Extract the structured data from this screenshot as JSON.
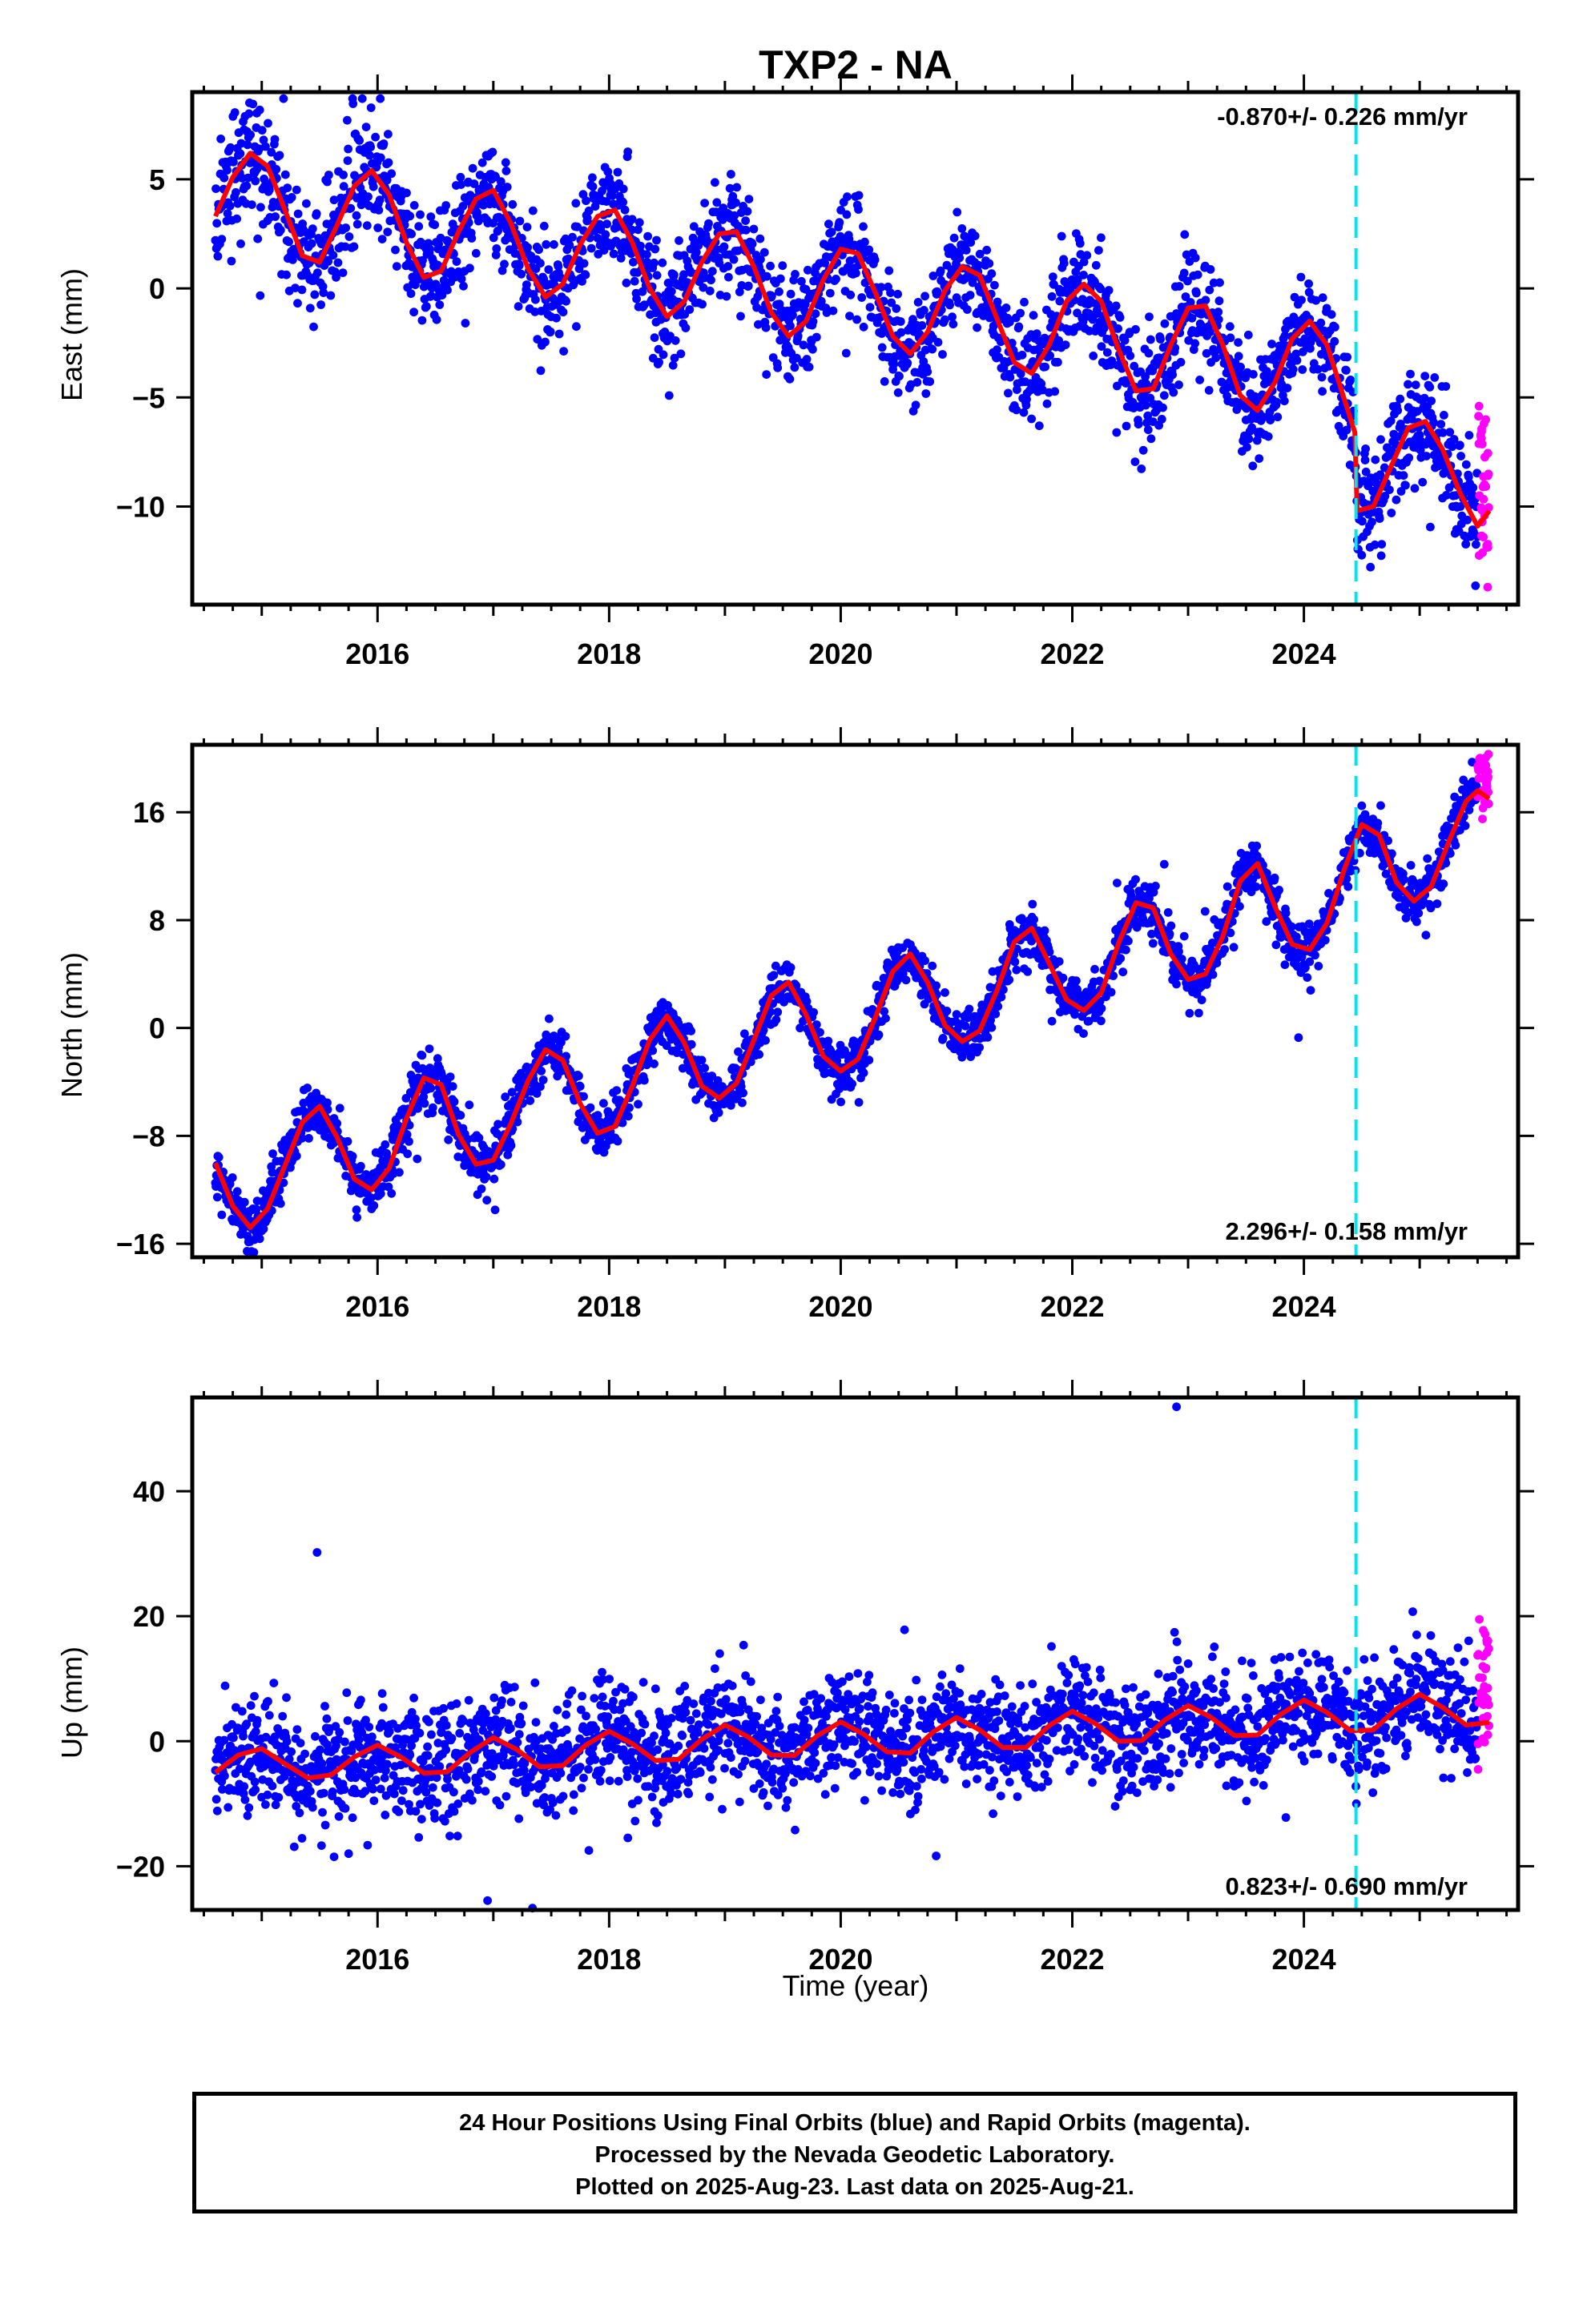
{
  "figure": {
    "title": "TXP2 - NA",
    "xlabel": "Time (year)",
    "caption": [
      "24 Hour Positions Using Final Orbits (blue) and Rapid Orbits (magenta).",
      "Processed by the Nevada Geodetic Laboratory.",
      "Plotted on 2025-Aug-23. Last data on 2025-Aug-21."
    ],
    "colors": {
      "final_orbits": "#0000ff",
      "rapid_orbits": "#ff00ff",
      "model_fit": "#ff0000",
      "equipment_change": "#00e5ee",
      "frame": "#000000"
    }
  },
  "chart_data": [
    {
      "type": "scatter",
      "component": "east",
      "ylabel": "East (mm)",
      "rate_label": "-0.870+/- 0.226 mm/yr",
      "rate_position": "top-right",
      "xlim": [
        2014.4,
        2025.85
      ],
      "ylim": [
        -14.5,
        9
      ],
      "xticks": [
        2016,
        2018,
        2020,
        2022,
        2024
      ],
      "xtick_labels": [
        "2016",
        "2018",
        "2020",
        "2022",
        "2024"
      ],
      "yticks": [
        -10,
        -5,
        0,
        5
      ],
      "ytick_labels": [
        "−10",
        "−5",
        "0",
        "5"
      ],
      "grid": false,
      "equipment_change_epoch": 2024.45,
      "model_fit": {
        "x": [
          2014.6,
          2014.75,
          2014.9,
          2015.05,
          2015.2,
          2015.35,
          2015.5,
          2015.65,
          2015.8,
          2015.95,
          2016.1,
          2016.25,
          2016.4,
          2016.55,
          2016.7,
          2016.85,
          2017.0,
          2017.15,
          2017.3,
          2017.45,
          2017.6,
          2017.75,
          2017.9,
          2018.05,
          2018.2,
          2018.35,
          2018.5,
          2018.65,
          2018.8,
          2018.95,
          2019.1,
          2019.25,
          2019.4,
          2019.55,
          2019.7,
          2019.85,
          2020.0,
          2020.15,
          2020.3,
          2020.45,
          2020.6,
          2020.75,
          2020.9,
          2021.05,
          2021.2,
          2021.35,
          2021.5,
          2021.65,
          2021.8,
          2021.95,
          2022.1,
          2022.25,
          2022.4,
          2022.55,
          2022.7,
          2022.85,
          2023.0,
          2023.15,
          2023.3,
          2023.45,
          2023.6,
          2023.75,
          2023.9,
          2024.05,
          2024.2,
          2024.35,
          2024.44,
          2024.46,
          2024.6,
          2024.75,
          2024.9,
          2025.05,
          2025.2,
          2025.35,
          2025.5,
          2025.6
        ],
        "y": [
          3.3,
          5.1,
          6.2,
          5.6,
          3.6,
          1.5,
          1.2,
          2.9,
          4.7,
          5.4,
          4.3,
          2.1,
          0.5,
          0.8,
          2.6,
          4.1,
          4.5,
          3.0,
          0.9,
          -0.4,
          0.2,
          2.0,
          3.3,
          3.6,
          2.1,
          0.0,
          -1.3,
          -0.6,
          1.2,
          2.5,
          2.6,
          1.0,
          -1.1,
          -2.2,
          -1.5,
          0.4,
          1.8,
          1.6,
          -0.2,
          -2.2,
          -3.0,
          -2.0,
          -0.1,
          1.0,
          0.6,
          -1.4,
          -3.4,
          -3.9,
          -2.6,
          -0.6,
          0.2,
          -0.6,
          -2.8,
          -4.7,
          -4.6,
          -2.6,
          -0.9,
          -0.8,
          -2.6,
          -4.9,
          -5.6,
          -4.3,
          -2.3,
          -1.5,
          -2.6,
          -5.1,
          -6.6,
          -10.2,
          -10.0,
          -8.2,
          -6.4,
          -6.1,
          -7.4,
          -9.4,
          -10.9,
          -10.2
        ]
      },
      "final_series_end": 2025.5,
      "rapid_series": {
        "x_start": 2025.5,
        "x_end": 2025.6,
        "y_min": -13.7,
        "y_max": -5.4
      }
    },
    {
      "type": "scatter",
      "component": "north",
      "ylabel": "North (mm)",
      "rate_label": "2.296+/- 0.158 mm/yr",
      "rate_position": "bottom-right",
      "xlim": [
        2014.4,
        2025.85
      ],
      "ylim": [
        -17,
        21
      ],
      "xticks": [
        2016,
        2018,
        2020,
        2022,
        2024
      ],
      "xtick_labels": [
        "2016",
        "2018",
        "2020",
        "2022",
        "2024"
      ],
      "yticks": [
        -16,
        -8,
        0,
        8,
        16
      ],
      "ytick_labels": [
        "−16",
        "−8",
        "0",
        "8",
        "16"
      ],
      "grid": false,
      "equipment_change_epoch": 2024.45,
      "model_fit": {
        "x": [
          2014.6,
          2014.75,
          2014.9,
          2015.05,
          2015.2,
          2015.35,
          2015.5,
          2015.65,
          2015.8,
          2015.95,
          2016.1,
          2016.25,
          2016.4,
          2016.55,
          2016.7,
          2016.85,
          2017.0,
          2017.15,
          2017.3,
          2017.45,
          2017.6,
          2017.75,
          2017.9,
          2018.05,
          2018.2,
          2018.35,
          2018.5,
          2018.65,
          2018.8,
          2018.95,
          2019.1,
          2019.25,
          2019.4,
          2019.55,
          2019.7,
          2019.85,
          2020.0,
          2020.15,
          2020.3,
          2020.45,
          2020.6,
          2020.75,
          2020.9,
          2021.05,
          2021.2,
          2021.35,
          2021.5,
          2021.65,
          2021.8,
          2021.95,
          2022.1,
          2022.25,
          2022.4,
          2022.55,
          2022.7,
          2022.85,
          2023.0,
          2023.15,
          2023.3,
          2023.45,
          2023.6,
          2023.75,
          2023.9,
          2024.05,
          2024.2,
          2024.35,
          2024.5,
          2024.65,
          2024.8,
          2024.95,
          2025.1,
          2025.25,
          2025.4,
          2025.5,
          2025.6
        ],
        "y": [
          -10.0,
          -13.2,
          -14.8,
          -13.4,
          -10.2,
          -7.0,
          -5.8,
          -8.1,
          -11.2,
          -12.0,
          -10.4,
          -6.7,
          -3.7,
          -4.2,
          -7.9,
          -10.1,
          -9.8,
          -7.1,
          -3.9,
          -1.6,
          -2.4,
          -5.6,
          -7.8,
          -7.3,
          -4.3,
          -0.9,
          0.9,
          -1.1,
          -4.3,
          -5.2,
          -4.1,
          -0.9,
          2.4,
          3.4,
          1.0,
          -2.1,
          -3.2,
          -2.3,
          0.8,
          4.2,
          5.5,
          3.4,
          0.2,
          -1.0,
          -0.2,
          2.8,
          6.4,
          7.4,
          4.8,
          2.1,
          1.3,
          2.6,
          6.3,
          9.3,
          8.9,
          5.5,
          3.6,
          4.0,
          6.8,
          10.9,
          12.2,
          9.0,
          6.2,
          5.8,
          7.8,
          11.8,
          15.1,
          14.3,
          10.8,
          9.4,
          10.5,
          13.8,
          16.8,
          17.6,
          17.0
        ]
      },
      "final_series_end": 2025.5,
      "rapid_series": {
        "x_start": 2025.5,
        "x_end": 2025.6,
        "y_min": 15.5,
        "y_max": 20.3
      }
    },
    {
      "type": "scatter",
      "component": "up",
      "ylabel": "Up (mm)",
      "rate_label": "0.823+/- 0.690 mm/yr",
      "rate_position": "bottom-right",
      "xlim": [
        2014.4,
        2025.85
      ],
      "ylim": [
        -27,
        55
      ],
      "xticks": [
        2016,
        2018,
        2020,
        2022,
        2024
      ],
      "xtick_labels": [
        "2016",
        "2018",
        "2020",
        "2022",
        "2024"
      ],
      "yticks": [
        -20,
        0,
        20,
        40
      ],
      "ytick_labels": [
        "−20",
        "0",
        "20",
        "40"
      ],
      "grid": false,
      "equipment_change_epoch": 2024.45,
      "model_fit": {
        "x": [
          2014.6,
          2014.8,
          2015.0,
          2015.2,
          2015.4,
          2015.6,
          2015.8,
          2016.0,
          2016.2,
          2016.4,
          2016.6,
          2016.8,
          2017.0,
          2017.2,
          2017.4,
          2017.6,
          2017.8,
          2018.0,
          2018.2,
          2018.4,
          2018.6,
          2018.8,
          2019.0,
          2019.2,
          2019.4,
          2019.6,
          2019.8,
          2020.0,
          2020.2,
          2020.4,
          2020.6,
          2020.8,
          2021.0,
          2021.2,
          2021.4,
          2021.6,
          2021.8,
          2022.0,
          2022.2,
          2022.4,
          2022.6,
          2022.8,
          2023.0,
          2023.2,
          2023.4,
          2023.6,
          2023.8,
          2024.0,
          2024.2,
          2024.4,
          2024.6,
          2024.8,
          2025.0,
          2025.2,
          2025.4,
          2025.6
        ],
        "y": [
          -5.0,
          -2.2,
          -1.2,
          -3.6,
          -5.9,
          -5.4,
          -2.5,
          -0.6,
          -2.5,
          -5.1,
          -4.9,
          -1.8,
          0.6,
          -1.3,
          -4.1,
          -3.9,
          -0.6,
          1.6,
          -0.4,
          -3.1,
          -2.9,
          0.3,
          2.6,
          0.7,
          -2.2,
          -2.3,
          0.9,
          3.1,
          1.1,
          -1.7,
          -1.9,
          1.5,
          3.8,
          1.8,
          -1.0,
          -1.0,
          2.5,
          4.8,
          2.8,
          0.0,
          0.1,
          3.4,
          5.7,
          3.8,
          0.9,
          1.0,
          4.3,
          6.6,
          4.6,
          1.7,
          1.8,
          5.2,
          7.5,
          5.4,
          2.6,
          3.0
        ]
      },
      "outliers": [
        {
          "x": 2022.9,
          "y": 53.5
        },
        {
          "x": 2016.95,
          "y": -25.5
        }
      ],
      "final_series_end": 2025.5,
      "rapid_series": {
        "x_start": 2025.5,
        "x_end": 2025.6,
        "y_min": -4.5,
        "y_max": 19.5
      }
    }
  ]
}
